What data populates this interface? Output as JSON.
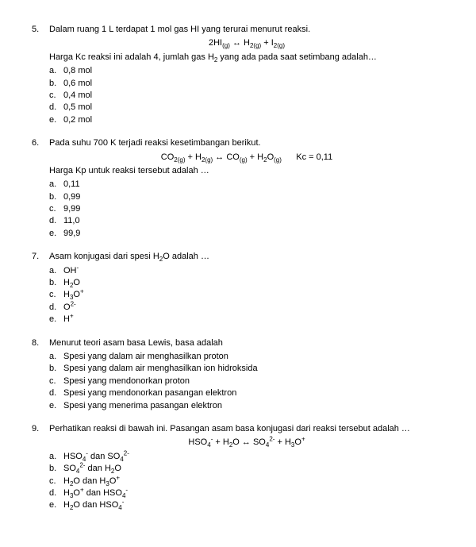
{
  "questions": [
    {
      "num": "5.",
      "stem1": "Dalam ruang 1 L terdapat 1 mol gas HI yang terurai menurut reaksi.",
      "equation": "2HI<sub>(g)</sub> ↔ H<sub>2(g)</sub> + I<sub>2(g)</sub>",
      "stem2": "Harga Kc reaksi ini adalah 4, jumlah gas H<sub>2</sub> yang ada pada saat setimbang adalah…",
      "opts": [
        {
          "l": "a.",
          "t": "0,8 mol"
        },
        {
          "l": "b.",
          "t": "0,6 mol"
        },
        {
          "l": "c.",
          "t": "0,4 mol"
        },
        {
          "l": "d.",
          "t": "0,5 mol"
        },
        {
          "l": "e.",
          "t": "0,2 mol"
        }
      ]
    },
    {
      "num": "6.",
      "stem1": "Pada suhu 700 K terjadi reaksi kesetimbangan berikut.",
      "equation": "CO<sub>2(g)</sub> + H<sub>2(g)</sub> ↔ CO<sub>(g)</sub> + H<sub>2</sub>O<sub>(g)</sub>&nbsp;&nbsp;&nbsp;&nbsp;&nbsp;&nbsp;Kc = 0,11",
      "stem2": "Harga Kp untuk reaksi tersebut adalah …",
      "opts": [
        {
          "l": "a.",
          "t": "0,11"
        },
        {
          "l": "b.",
          "t": "0,99"
        },
        {
          "l": "c.",
          "t": "9,99"
        },
        {
          "l": "d.",
          "t": "11,0"
        },
        {
          "l": "e.",
          "t": "99,9"
        }
      ]
    },
    {
      "num": "7.",
      "stem1": "Asam konjugasi dari spesi H<sub>2</sub>O adalah …",
      "opts": [
        {
          "l": "a.",
          "t": "OH<sup>-</sup>"
        },
        {
          "l": "b.",
          "t": "H<sub>2</sub>O"
        },
        {
          "l": "c.",
          "t": "H<sub>3</sub>O<sup>+</sup>"
        },
        {
          "l": "d.",
          "t": "O<sup>2-</sup>"
        },
        {
          "l": "e.",
          "t": "H<sup>+</sup>"
        }
      ]
    },
    {
      "num": "8.",
      "stem1": "Menurut teori asam basa Lewis, basa adalah",
      "opts": [
        {
          "l": "a.",
          "t": "Spesi yang dalam air menghasilkan proton"
        },
        {
          "l": "b.",
          "t": "Spesi yang dalam air menghasilkan ion hidroksida"
        },
        {
          "l": "c.",
          "t": "Spesi yang mendonorkan proton"
        },
        {
          "l": "d.",
          "t": "Spesi yang mendonorkan pasangan elektron"
        },
        {
          "l": "e.",
          "t": "Spesi yang menerima pasangan elektron"
        }
      ]
    },
    {
      "num": "9.",
      "stem1": "Perhatikan reaksi di bawah ini. Pasangan asam basa konjugasi dari reaksi tersebut adalah …",
      "equation": "HSO<sub>4</sub><sup>-</sup> + H<sub>2</sub>O ↔ SO<sub>4</sub><sup>2-</sup> + H<sub>3</sub>O<sup>+</sup>",
      "opts": [
        {
          "l": "a.",
          "t": "HSO<sub>4</sub><sup>-</sup> dan SO<sub>4</sub><sup>2-</sup>"
        },
        {
          "l": "b.",
          "t": "SO<sub>4</sub><sup>2-</sup> dan H<sub>2</sub>O"
        },
        {
          "l": "c.",
          "t": "H<sub>2</sub>O dan H<sub>3</sub>O<sup>+</sup>"
        },
        {
          "l": "d.",
          "t": "H<sub>3</sub>O<sup>+</sup> dan HSO<sub>4</sub><sup>-</sup>"
        },
        {
          "l": "e.",
          "t": "H<sub>2</sub>O dan HSO<sub>4</sub><sup>-</sup>"
        }
      ]
    }
  ]
}
